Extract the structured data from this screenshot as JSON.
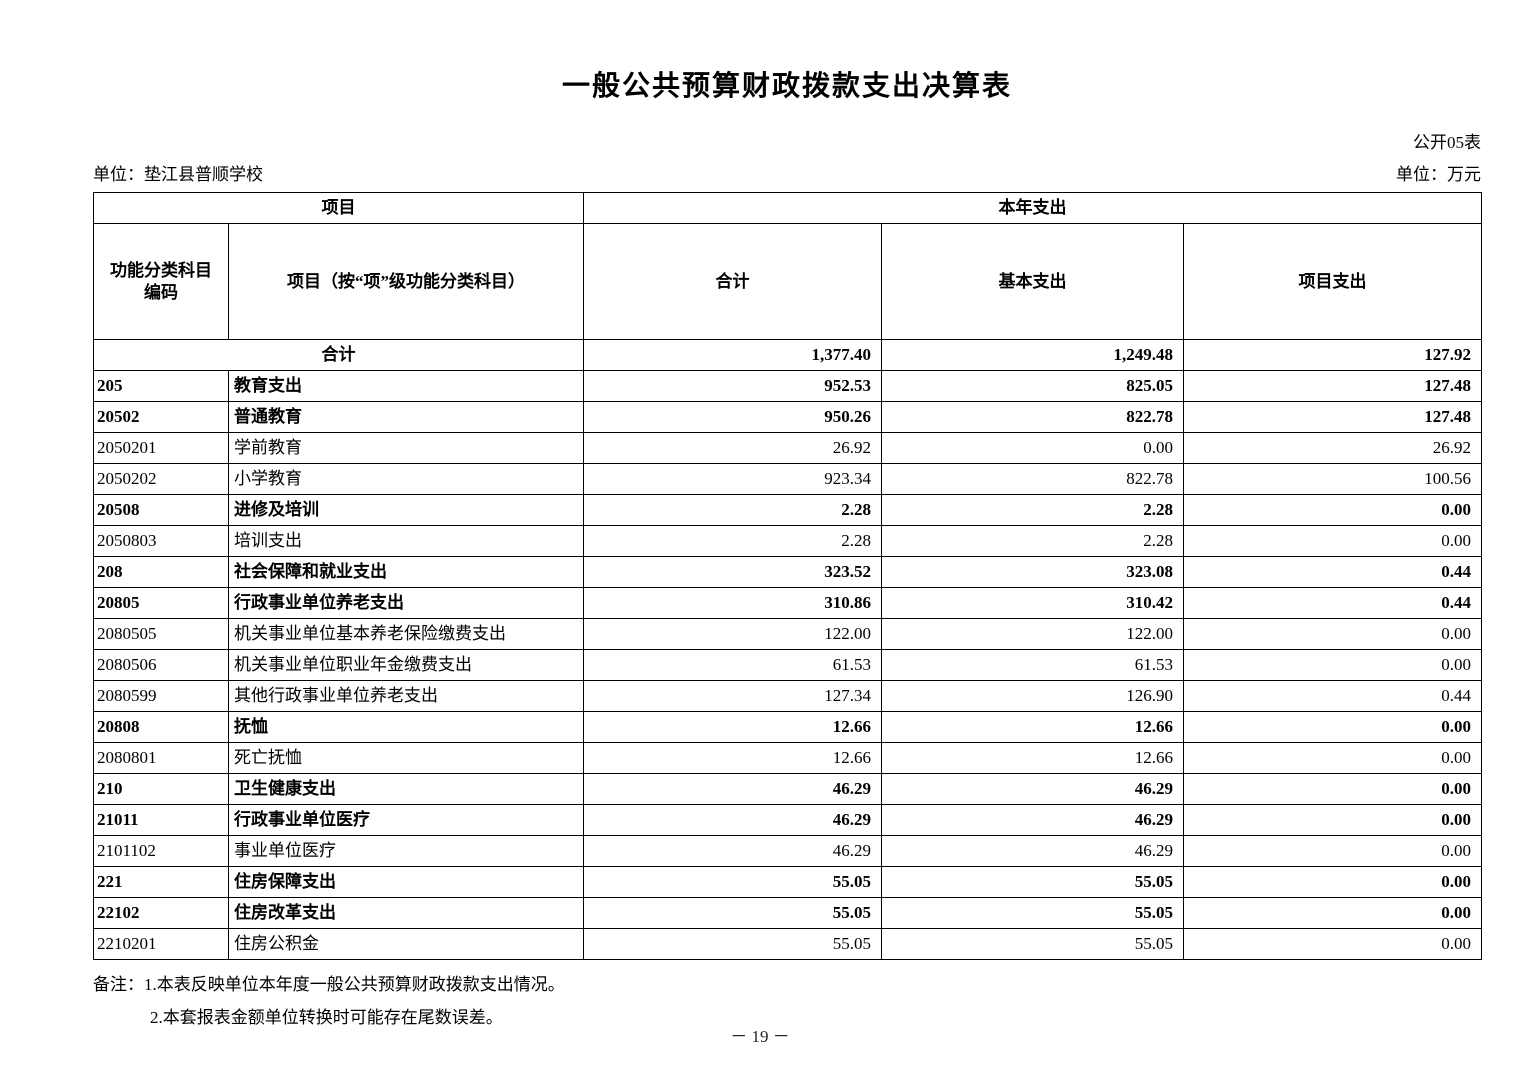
{
  "page": {
    "title": "一般公共预算财政拨款支出决算表",
    "table_code": "公开05表",
    "unit_left": "单位：垫江县普顺学校",
    "unit_right": "单位：万元",
    "page_number": "－ 19 －"
  },
  "table": {
    "header": {
      "group_left": "项目",
      "group_right": "本年支出",
      "col_code": "功能分类科目编码",
      "col_item": "项目（按“项”级功能分类科目）",
      "col_total": "合计",
      "col_basic": "基本支出",
      "col_project": "项目支出"
    },
    "total_row": {
      "label": "合计",
      "total": "1,377.40",
      "basic": "1,249.48",
      "project": "127.92"
    },
    "rows": [
      {
        "code": "205",
        "name": "教育支出",
        "total": "952.53",
        "basic": "825.05",
        "project": "127.48",
        "bold": true
      },
      {
        "code": "20502",
        "name": "普通教育",
        "total": "950.26",
        "basic": "822.78",
        "project": "127.48",
        "bold": true
      },
      {
        "code": "2050201",
        "name": "学前教育",
        "total": "26.92",
        "basic": "0.00",
        "project": "26.92",
        "bold": false
      },
      {
        "code": "2050202",
        "name": "小学教育",
        "total": "923.34",
        "basic": "822.78",
        "project": "100.56",
        "bold": false
      },
      {
        "code": "20508",
        "name": "进修及培训",
        "total": "2.28",
        "basic": "2.28",
        "project": "0.00",
        "bold": true
      },
      {
        "code": "2050803",
        "name": "培训支出",
        "total": "2.28",
        "basic": "2.28",
        "project": "0.00",
        "bold": false
      },
      {
        "code": "208",
        "name": "社会保障和就业支出",
        "total": "323.52",
        "basic": "323.08",
        "project": "0.44",
        "bold": true
      },
      {
        "code": "20805",
        "name": "行政事业单位养老支出",
        "total": "310.86",
        "basic": "310.42",
        "project": "0.44",
        "bold": true
      },
      {
        "code": "2080505",
        "name": "机关事业单位基本养老保险缴费支出",
        "total": "122.00",
        "basic": "122.00",
        "project": "0.00",
        "bold": false
      },
      {
        "code": "2080506",
        "name": "机关事业单位职业年金缴费支出",
        "total": "61.53",
        "basic": "61.53",
        "project": "0.00",
        "bold": false
      },
      {
        "code": "2080599",
        "name": "其他行政事业单位养老支出",
        "total": "127.34",
        "basic": "126.90",
        "project": "0.44",
        "bold": false
      },
      {
        "code": "20808",
        "name": "抚恤",
        "total": "12.66",
        "basic": "12.66",
        "project": "0.00",
        "bold": true
      },
      {
        "code": "2080801",
        "name": "死亡抚恤",
        "total": "12.66",
        "basic": "12.66",
        "project": "0.00",
        "bold": false
      },
      {
        "code": "210",
        "name": "卫生健康支出",
        "total": "46.29",
        "basic": "46.29",
        "project": "0.00",
        "bold": true
      },
      {
        "code": "21011",
        "name": "行政事业单位医疗",
        "total": "46.29",
        "basic": "46.29",
        "project": "0.00",
        "bold": true
      },
      {
        "code": "2101102",
        "name": "事业单位医疗",
        "total": "46.29",
        "basic": "46.29",
        "project": "0.00",
        "bold": false
      },
      {
        "code": "221",
        "name": "住房保障支出",
        "total": "55.05",
        "basic": "55.05",
        "project": "0.00",
        "bold": true
      },
      {
        "code": "22102",
        "name": "住房改革支出",
        "total": "55.05",
        "basic": "55.05",
        "project": "0.00",
        "bold": true
      },
      {
        "code": "2210201",
        "name": "住房公积金",
        "total": "55.05",
        "basic": "55.05",
        "project": "0.00",
        "bold": false
      }
    ]
  },
  "notes": {
    "prefix": "备注：",
    "line1": "1.本表反映单位本年度一般公共预算财政拨款支出情况。",
    "line2": "2.本套报表金额单位转换时可能存在尾数误差。"
  }
}
